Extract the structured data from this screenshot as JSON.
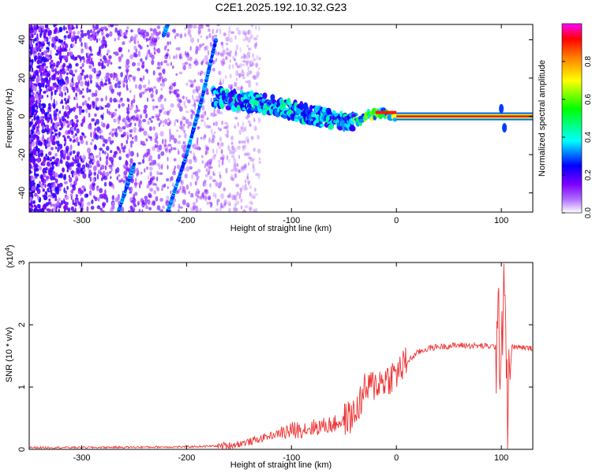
{
  "title": "C2E1.2025.192.10.32.G23",
  "chart_data": [
    {
      "type": "heatmap",
      "xlabel": "Height of straight line (km)",
      "ylabel": "Frequency (Hz)",
      "xlim": [
        -350,
        130
      ],
      "ylim": [
        -50,
        48
      ],
      "x_ticks": [
        -300,
        -200,
        -100,
        0,
        100
      ],
      "y_ticks": [
        -40,
        -20,
        0,
        20,
        40
      ],
      "colorbar": {
        "label": "Normalized spectral amplitude",
        "range": [
          0,
          1
        ],
        "ticks": [
          0.0,
          0.2,
          0.4,
          0.6,
          0.8
        ],
        "colors": [
          "#ffffff",
          "#8000ff",
          "#0000ff",
          "#00ffff",
          "#00ff00",
          "#ffff00",
          "#ff8000",
          "#ff0000",
          "#ff00ff"
        ]
      },
      "features": [
        {
          "kind": "ridge",
          "points": [
            [
              -175,
              10
            ],
            [
              -150,
              8
            ],
            [
              -120,
              6
            ],
            [
              -90,
              2
            ],
            [
              -60,
              -2
            ],
            [
              -45,
              -4
            ],
            [
              -30,
              0
            ],
            [
              -15,
              2
            ],
            [
              0,
              0
            ],
            [
              130,
              0
            ]
          ]
        },
        {
          "kind": "streak",
          "points": [
            [
              -218,
              -50
            ],
            [
              -200,
              -20
            ],
            [
              -185,
              10
            ],
            [
              -172,
              40
            ]
          ]
        },
        {
          "kind": "streak",
          "points": [
            [
              -222,
              42
            ],
            [
              -218,
              48
            ]
          ]
        },
        {
          "kind": "streak",
          "points": [
            [
              -265,
              -50
            ],
            [
              -250,
              -25
            ]
          ]
        },
        {
          "kind": "burst",
          "points": [
            [
              100,
              4
            ],
            [
              103,
              -6
            ]
          ]
        }
      ]
    },
    {
      "type": "line",
      "xlabel": "Height of straight line (km)",
      "ylabel": "SNR (10 * v/v)",
      "y_scale_label": "(x10",
      "y_scale_exp": "4",
      "xlim": [
        -350,
        130
      ],
      "ylim": [
        0,
        3
      ],
      "x_ticks": [
        -300,
        -200,
        -100,
        0,
        100
      ],
      "y_ticks": [
        0,
        1,
        2,
        3
      ],
      "color": "#ee3333",
      "series": [
        {
          "x": [
            -350,
            -300,
            -200,
            -160,
            -140,
            -120,
            -100,
            -80,
            -60,
            -40,
            -30,
            -20,
            -10,
            0,
            10,
            20,
            30,
            40,
            60,
            80,
            95,
            100,
            103,
            106,
            110,
            130
          ],
          "values": [
            0.03,
            0.03,
            0.04,
            0.06,
            0.12,
            0.22,
            0.3,
            0.35,
            0.4,
            0.55,
            0.95,
            1.05,
            1.12,
            1.22,
            1.4,
            1.55,
            1.62,
            1.65,
            1.67,
            1.66,
            1.65,
            1.8,
            3.0,
            0.4,
            1.65,
            1.62
          ]
        }
      ]
    }
  ]
}
